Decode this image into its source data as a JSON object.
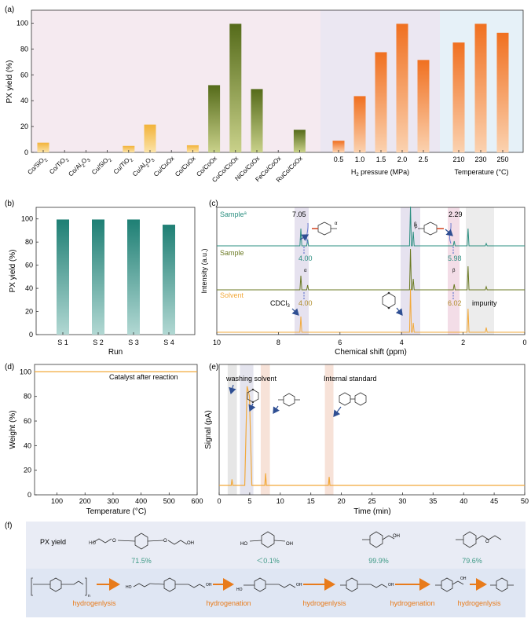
{
  "colors": {
    "orange_top": "#f07020",
    "orange_bottom": "#fbd2b0",
    "olive_top": "#556b1a",
    "olive_bottom": "#c9d18a",
    "yellow_top": "#f2b33a",
    "yellow_bottom": "#fbe3a8",
    "teal_top": "#1e7f74",
    "teal_bottom": "#b2d8d3",
    "line_yellow": "#f2a93b",
    "panel_a_pink": "#f5eaf0",
    "panel_a_lavender": "#ebe7f2",
    "panel_a_blue": "#e6f1f8",
    "panel_f_bg": "#e9ecf5",
    "arrow_orange": "#e87b1b",
    "green_text": "#3f9a86"
  },
  "chart_data": [
    {
      "panel": "a",
      "type": "bar",
      "ylabel": "PX yield (%)",
      "ylim": [
        0,
        110
      ],
      "yticks": [
        "0",
        "20",
        "40",
        "60",
        "80",
        "100"
      ],
      "groups": [
        {
          "name": "catalyst",
          "categories": [
            "Co/SiO2",
            "Co/TiO2",
            "Co/Al2O3",
            "Cu/SiO2",
            "Cu/TiO2",
            "Cu/Al2O3",
            "Cu/CuOx",
            "Co/CuOx",
            "Co/CoOx",
            "CuCo/CoOx",
            "NiCo/CoOx",
            "FeCo/CoOx",
            "RuCo/CoOx"
          ],
          "values": [
            7.5,
            0,
            0,
            0,
            5,
            21.5,
            0,
            5.5,
            52,
            99.5,
            49,
            0,
            17.5
          ]
        },
        {
          "name": "pressure",
          "xlabel": "H2 pressure (MPa)",
          "categories": [
            "0.5",
            "1.0",
            "1.5",
            "2.0",
            "2.5"
          ],
          "values": [
            9,
            43.5,
            77.5,
            99.5,
            71.5
          ]
        },
        {
          "name": "temperature",
          "xlabel": "Temperature (°C)",
          "categories": [
            "210",
            "230",
            "250"
          ],
          "values": [
            85,
            99.5,
            92.5
          ]
        }
      ]
    },
    {
      "panel": "b",
      "type": "bar",
      "ylabel": "PX yield (%)",
      "xlabel": "Run",
      "ylim": [
        0,
        110
      ],
      "yticks": [
        "0",
        "20",
        "40",
        "60",
        "80",
        "100"
      ],
      "categories": [
        "S 1",
        "S 2",
        "S 3",
        "S 4"
      ],
      "values": [
        99.5,
        99.5,
        99.5,
        95
      ]
    },
    {
      "panel": "c",
      "type": "line",
      "xlabel": "Chemical shift (ppm)",
      "ylabel": "Intensity (a.u.)",
      "xlim": [
        10,
        0
      ],
      "xticks": [
        "10",
        "8",
        "6",
        "4",
        "2",
        "0"
      ],
      "series": [
        {
          "name": "Sample",
          "marker": "a",
          "color": "#2b8f80"
        },
        {
          "name": "Sample",
          "color": "#6b7a23"
        },
        {
          "name": "Solvent",
          "color": "#f2a93b"
        }
      ],
      "annotations": [
        "7.05",
        "2.29",
        "4.00",
        "5.98",
        "4.00",
        "6.02",
        "α",
        "β",
        "α",
        "β",
        "CDCl3",
        "impurity"
      ]
    },
    {
      "panel": "d",
      "type": "line",
      "xlabel": "Temperature (°C)",
      "ylabel": "Weight (%)",
      "xlim": [
        20,
        600
      ],
      "ylim": [
        0,
        106
      ],
      "xticks": [
        "100",
        "200",
        "300",
        "400",
        "500",
        "600"
      ],
      "yticks": [
        "0",
        "20",
        "40",
        "60",
        "80",
        "100"
      ],
      "series": [
        {
          "name": "Catalyst after reaction",
          "x": [
            20,
            600
          ],
          "y": [
            100,
            100
          ]
        }
      ]
    },
    {
      "panel": "e",
      "type": "line",
      "xlabel": "Time (min)",
      "ylabel": "Signal (pA)",
      "xlim": [
        0,
        50
      ],
      "xticks": [
        "0",
        "5",
        "10",
        "15",
        "20",
        "25",
        "30",
        "35",
        "40",
        "45",
        "50"
      ],
      "labels": [
        "washing solvent",
        "Internal standard"
      ],
      "peaks": [
        {
          "t": 2.1,
          "h": 0.05
        },
        {
          "t": 4.7,
          "h": 0.82
        },
        {
          "t": 7.6,
          "h": 0.1
        },
        {
          "t": 18.0,
          "h": 0.07
        }
      ]
    }
  ],
  "panels": {
    "a": "(a)",
    "b": "(b)",
    "c": "(c)",
    "d": "(d)",
    "e": "(e)",
    "f": "(f)"
  },
  "panel_c": {
    "trace1": "Sample",
    "trace1_sup": "a",
    "trace2": "Sample",
    "trace3": "Solvent",
    "peak_705": "7.05",
    "peak_229": "2.29",
    "int_400a": "4.00",
    "int_598": "5.98",
    "int_400b": "4.00",
    "int_602": "6.02",
    "alpha": "α",
    "beta": "β",
    "cdcl3": "CDCl",
    "cdcl3_sub": "3",
    "impurity": "impurity"
  },
  "panel_d": {
    "legend": "Catalyst after reaction"
  },
  "panel_f": {
    "row_label": "PX yield",
    "yields": [
      "71.5%",
      "＜0.1%",
      "99.9%",
      "79.6%"
    ],
    "steps": [
      "hydrogenlysis",
      "hydrogenation",
      "hydrogenlysis",
      "hydrogenation",
      "hydrogenlysis"
    ],
    "poly_sub": "n"
  }
}
